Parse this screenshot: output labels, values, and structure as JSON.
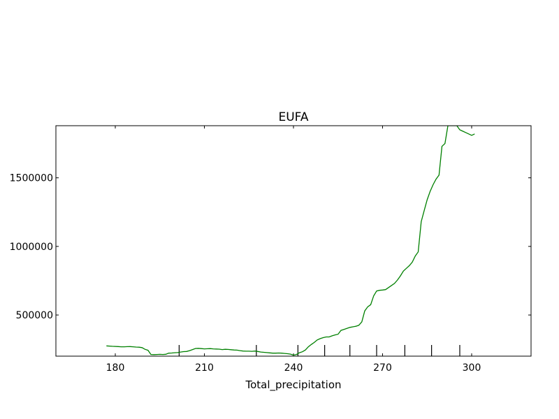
{
  "chart_data": {
    "type": "line",
    "title": "EUFA",
    "xlabel": "Total_precipitation",
    "ylabel": "",
    "xlim": [
      160,
      320
    ],
    "ylim": [
      200000,
      1880000
    ],
    "xticks": [
      180,
      210,
      240,
      270,
      300
    ],
    "yticks": [
      500000,
      1000000,
      1500000
    ],
    "grid": false,
    "legend": "none",
    "rug_x": [
      201.5,
      227.5,
      241.5,
      250.5,
      259,
      268,
      277.5,
      286.5,
      296
    ],
    "series": [
      {
        "color": "#008000",
        "x": [
          177,
          179,
          181,
          182,
          183,
          184,
          185,
          186,
          187,
          188,
          189,
          190,
          191,
          192,
          193,
          194,
          195,
          196,
          197,
          198,
          199,
          200,
          201,
          202,
          203,
          204,
          205,
          206,
          207,
          208,
          209,
          210,
          211,
          212,
          213,
          214,
          215,
          216,
          217,
          218,
          219,
          220,
          221,
          222,
          223,
          224,
          225,
          226,
          227,
          228,
          229,
          230,
          231,
          232,
          233,
          234,
          235,
          236,
          237,
          238,
          239,
          240,
          241,
          242,
          243,
          244,
          245,
          246,
          247,
          248,
          249,
          250,
          251,
          252,
          253,
          254,
          255,
          256,
          257,
          258,
          259,
          260,
          261,
          262,
          263,
          264,
          265,
          266,
          267,
          268,
          269,
          270,
          271,
          272,
          273,
          274,
          275,
          276,
          277,
          278,
          279,
          280,
          281,
          282,
          283,
          284,
          285,
          286,
          287,
          288,
          289,
          290,
          291,
          292,
          293,
          294,
          295,
          296,
          297,
          298,
          299,
          300,
          301
        ],
        "y": [
          275000,
          272000,
          270000,
          268000,
          268000,
          269000,
          270000,
          268000,
          266000,
          265000,
          262000,
          250000,
          243000,
          212000,
          211000,
          212000,
          213000,
          212000,
          214000,
          222000,
          223000,
          225000,
          226000,
          230000,
          233000,
          234000,
          240000,
          248000,
          256000,
          257000,
          255000,
          253000,
          254000,
          255000,
          253000,
          252000,
          251000,
          248000,
          250000,
          249000,
          247000,
          245000,
          244000,
          240000,
          237000,
          236000,
          236000,
          235000,
          237000,
          234000,
          230000,
          228000,
          226000,
          224000,
          222000,
          222000,
          223000,
          222000,
          220000,
          218000,
          215000,
          207000,
          212000,
          225000,
          232000,
          245000,
          268000,
          285000,
          300000,
          318000,
          328000,
          335000,
          340000,
          340000,
          348000,
          355000,
          360000,
          388000,
          395000,
          402000,
          410000,
          414000,
          418000,
          425000,
          450000,
          530000,
          560000,
          575000,
          640000,
          675000,
          680000,
          682000,
          685000,
          700000,
          715000,
          730000,
          755000,
          785000,
          820000,
          840000,
          860000,
          885000,
          930000,
          960000,
          1180000,
          1260000,
          1340000,
          1400000,
          1450000,
          1490000,
          1520000,
          1730000,
          1750000,
          1880000,
          1880000,
          1880000,
          1880000,
          1850000,
          1840000,
          1830000,
          1820000,
          1810000,
          1820000
        ]
      }
    ]
  }
}
